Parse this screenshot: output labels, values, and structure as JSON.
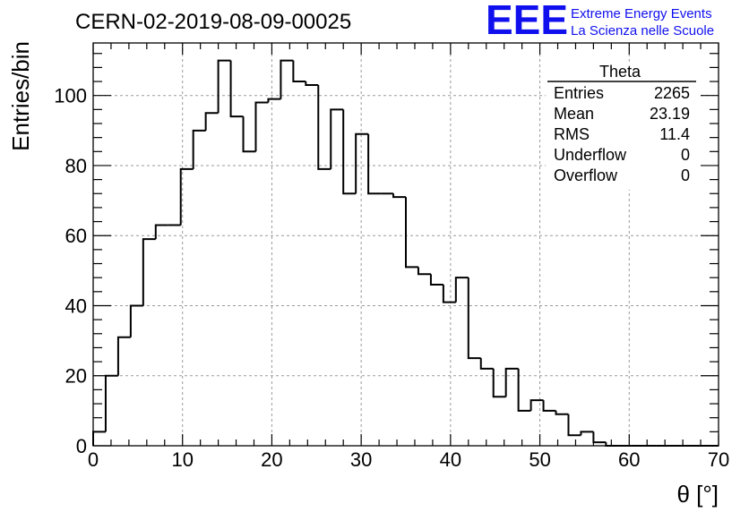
{
  "chart_data": {
    "type": "bar",
    "title": "CERN-02-2019-08-09-00025",
    "xlabel": "θ [°]",
    "ylabel": "Entries/bin",
    "xlim": [
      0,
      70
    ],
    "ylim": [
      0,
      115
    ],
    "x_ticks": [
      0,
      10,
      20,
      30,
      40,
      50,
      60,
      70
    ],
    "y_ticks": [
      0,
      20,
      40,
      60,
      80,
      100
    ],
    "grid": true,
    "bin_width": 1.4,
    "bin_edges_start": 0,
    "values": [
      4,
      20,
      31,
      40,
      59,
      63,
      63,
      79,
      90,
      95,
      110,
      94,
      84,
      98,
      99,
      110,
      104,
      103,
      79,
      96,
      72,
      89,
      72,
      72,
      71,
      51,
      49,
      46,
      41,
      48,
      25,
      22,
      14,
      22,
      10,
      13,
      10,
      9,
      3,
      4,
      1,
      0,
      0,
      0,
      0,
      0,
      0,
      0,
      0,
      0
    ],
    "stats_box": {
      "title": "Theta",
      "rows": [
        {
          "label": "Entries",
          "value": "2265"
        },
        {
          "label": "Mean",
          "value": "23.19"
        },
        {
          "label": "RMS",
          "value": "11.4"
        },
        {
          "label": "Underflow",
          "value": "0"
        },
        {
          "label": "Overflow",
          "value": "0"
        }
      ]
    }
  },
  "logo": {
    "letters": "EEE",
    "line1": "Extreme Energy Events",
    "line2": "La Scienza nelle Scuole",
    "color": "#1010ee"
  }
}
